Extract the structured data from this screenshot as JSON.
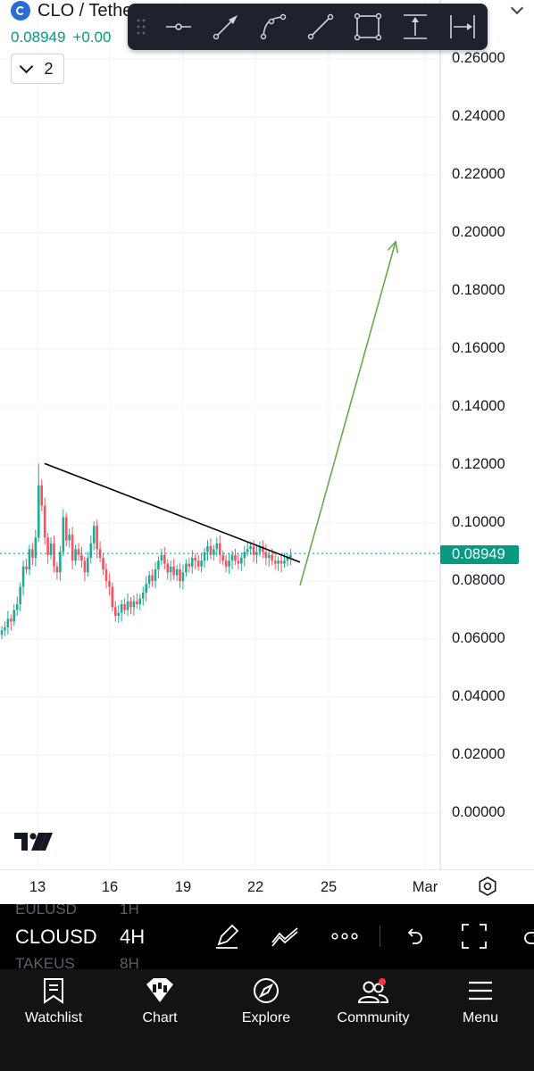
{
  "header": {
    "symbol_title": "CLO / Tether US PERPETUAL CONTR",
    "last_price": "0.08949",
    "change": "+0.00",
    "indicators_count": "2"
  },
  "drawing_toolbar": {
    "tools": [
      "horizontal-line-icon",
      "arrow-icon",
      "curve-icon",
      "trend-line-icon",
      "rectangle-icon",
      "price-range-icon",
      "date-range-icon"
    ]
  },
  "price_axis": {
    "labels": [
      "0.26000",
      "0.24000",
      "0.22000",
      "0.20000",
      "0.18000",
      "0.16000",
      "0.14000",
      "0.12000",
      "0.10000",
      "0.08000",
      "0.06000",
      "0.04000",
      "0.02000",
      "0.00000"
    ],
    "current_price_label": "0.08949",
    "current_price_color": "#089981"
  },
  "time_axis": {
    "labels": [
      "13",
      "16",
      "19",
      "22",
      "25",
      "Mar"
    ]
  },
  "chart_data": {
    "type": "candlestick",
    "pair": "CLO/USDT",
    "interval": "4H",
    "ylim": [
      -0.01,
      0.27
    ],
    "up_color": "#22ab94",
    "down_color": "#f7525f",
    "trendline": {
      "color": "#000000",
      "from": [
        0.1205,
        "13"
      ],
      "to": [
        0.0865,
        "24"
      ]
    },
    "projection_arrow": {
      "color": "#6aa84f",
      "from": [
        0.0785,
        "24"
      ],
      "to": [
        0.197,
        "26"
      ]
    },
    "closes": [
      0.063,
      0.064,
      0.067,
      0.066,
      0.07,
      0.072,
      0.078,
      0.085,
      0.084,
      0.091,
      0.088,
      0.095,
      0.113,
      0.106,
      0.095,
      0.089,
      0.093,
      0.085,
      0.083,
      0.09,
      0.102,
      0.094,
      0.096,
      0.087,
      0.091,
      0.089,
      0.087,
      0.083,
      0.088,
      0.093,
      0.099,
      0.091,
      0.088,
      0.084,
      0.08,
      0.078,
      0.071,
      0.068,
      0.069,
      0.072,
      0.07,
      0.073,
      0.071,
      0.073,
      0.072,
      0.074,
      0.076,
      0.079,
      0.082,
      0.08,
      0.084,
      0.087,
      0.089,
      0.086,
      0.083,
      0.085,
      0.082,
      0.084,
      0.08,
      0.083,
      0.086,
      0.085,
      0.088,
      0.087,
      0.085,
      0.087,
      0.09,
      0.092,
      0.089,
      0.091,
      0.093,
      0.089,
      0.087,
      0.085,
      0.087,
      0.089,
      0.087,
      0.086,
      0.088,
      0.09,
      0.091,
      0.092,
      0.089,
      0.09,
      0.092,
      0.09,
      0.088,
      0.089,
      0.087,
      0.086,
      0.087,
      0.086,
      0.087,
      0.088,
      0.089
    ]
  },
  "bottom_toolbar": {
    "symbol": "CLOUSD",
    "interval": "4H",
    "ghost_above_symbol": "EULUSD",
    "ghost_above_interval": "1H",
    "ghost_below_symbol": "TAKEUS",
    "ghost_below_interval": "8H"
  },
  "nav": {
    "items": [
      {
        "label": "Watchlist",
        "icon": "watchlist-icon"
      },
      {
        "label": "Chart",
        "icon": "chart-icon"
      },
      {
        "label": "Explore",
        "icon": "compass-icon"
      },
      {
        "label": "Community",
        "icon": "community-icon"
      },
      {
        "label": "Menu",
        "icon": "menu-icon"
      }
    ]
  }
}
